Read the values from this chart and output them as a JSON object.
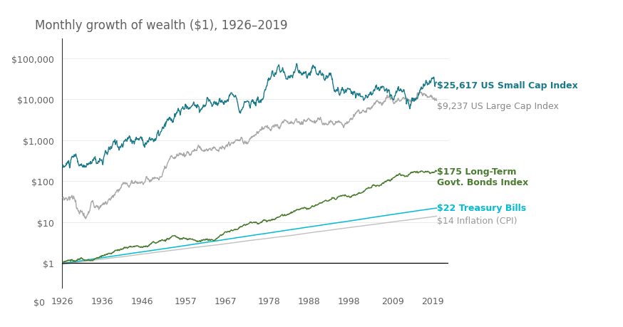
{
  "title": "Monthly growth of wealth ($1), 1926–2019",
  "series": {
    "small_cap": {
      "label": "$25,617 US Small Cap Index",
      "color": "#1a7a8a",
      "final": 25617
    },
    "large_cap": {
      "label": "$9,237 US Large Cap Index",
      "color": "#a8a8a8",
      "final": 9237
    },
    "bonds": {
      "label": "$175 Long-Term\nGovt. Bonds Index",
      "color": "#4a7c2f",
      "final": 175
    },
    "tbills": {
      "label": "$22 Treasury Bills",
      "color": "#00bcd4",
      "final": 22
    },
    "inflation": {
      "label": "$14 Inflation (CPI)",
      "color": "#c0c0c0",
      "final": 14
    }
  },
  "x_ticks": [
    1926,
    1936,
    1946,
    1957,
    1967,
    1978,
    1988,
    1998,
    2009,
    2019
  ],
  "y_ticks": [
    1,
    10,
    100,
    1000,
    10000,
    100000
  ],
  "y_labels": [
    "$1",
    "$10",
    "$100",
    "$1,000",
    "$10,000",
    "$100,000"
  ],
  "ylim_low": 0.25,
  "ylim_high": 300000,
  "background_color": "#ffffff",
  "title_color": "#606060",
  "title_fontsize": 12,
  "label_fontsize": 9
}
